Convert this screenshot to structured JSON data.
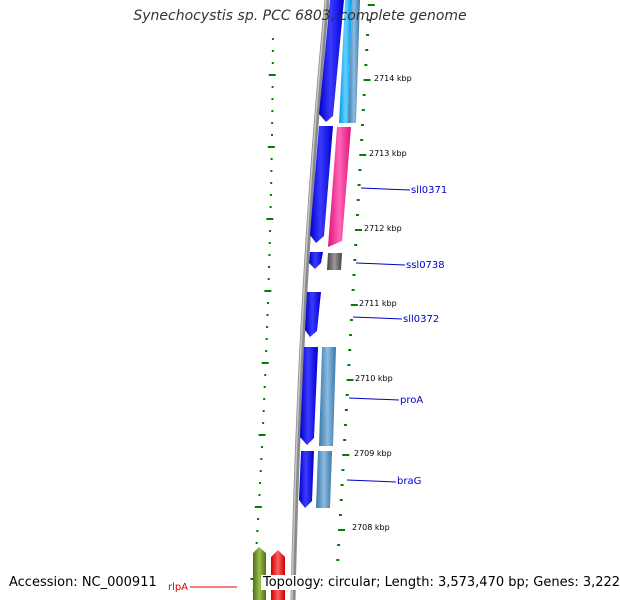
{
  "title": "Synechocystis sp. PCC 6803, complete genome",
  "footer": {
    "accession": "Accession: NC_000911",
    "topology": "Topology: circular; Length: 3,573,470 bp; Genes: 3,222"
  },
  "kbp_labels": [
    "2714 kbp",
    "2713 kbp",
    "2712 kbp",
    "2711 kbp",
    "2710 kbp",
    "2709 kbp",
    "2708 kbp"
  ],
  "gene_labels": [
    {
      "text": "sll0371",
      "color": "#0000cc"
    },
    {
      "text": "ssl0738",
      "color": "#0000cc"
    },
    {
      "text": "sll0372",
      "color": "#0000cc"
    },
    {
      "text": "proA",
      "color": "#0000cc"
    },
    {
      "text": "braG",
      "color": "#0000cc"
    },
    {
      "text": "rlpA",
      "color": "#dd0000"
    }
  ],
  "colors": {
    "blue": "#1a1aff",
    "light_blue": "#1ab2ff",
    "steel_blue": "#4f8fc0",
    "pink": "#ff3399",
    "gray": "#666666",
    "olive": "#6b8e23",
    "red": "#ff0000",
    "tick_green": "#008000",
    "axis_gray": "#888888"
  }
}
